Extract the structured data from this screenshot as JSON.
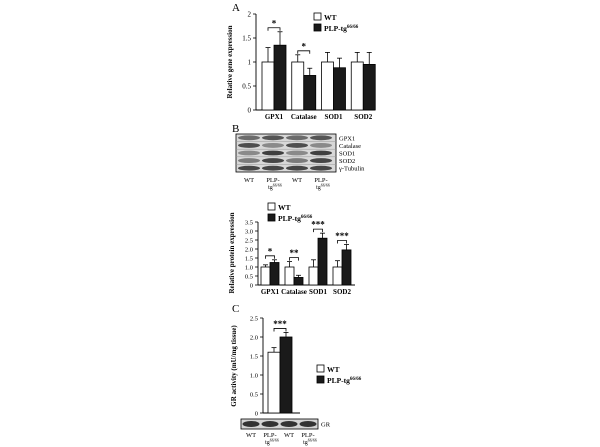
{
  "panels": {
    "a": {
      "letter": "A"
    },
    "b": {
      "letter": "B"
    },
    "c": {
      "letter": "C"
    }
  },
  "legend": {
    "wt": "WT",
    "plp_prefix": "PLP-tg",
    "plp_sup": "66/66"
  },
  "blot_b": {
    "bands": [
      "GPX1",
      "Catalase",
      "SOD1",
      "SOD2",
      "γ-Tubulin"
    ],
    "lanes": [
      {
        "main": "WT",
        "sup": ""
      },
      {
        "main": "PLP-",
        "sub": "tg",
        "sup": "66/66"
      },
      {
        "main": "WT",
        "sup": ""
      },
      {
        "main": "PLP-",
        "sub": "tg",
        "sup": "66/66"
      }
    ]
  },
  "blot_c": {
    "bands": [
      "GR"
    ],
    "lanes": [
      {
        "main": "WT",
        "sup": ""
      },
      {
        "main": "PLP-",
        "sub": "tg",
        "sup": "66/66"
      },
      {
        "main": "WT",
        "sup": ""
      },
      {
        "main": "PLP-",
        "sub": "tg",
        "sup": "66/66"
      }
    ]
  },
  "colors": {
    "wt": "#ffffff",
    "plp": "#1a1a1a",
    "axis": "#000000"
  },
  "chart_data": [
    {
      "type": "bar",
      "ylabel": "Relative gene expression",
      "categories": [
        "GPX1",
        "Catalase",
        "SOD1",
        "SOD2"
      ],
      "yticks": [
        "0",
        "0.5",
        "1",
        "1.5",
        "2"
      ],
      "ylim": [
        0,
        2
      ],
      "series": [
        {
          "name": "WT",
          "values": [
            1.0,
            1.0,
            1.0,
            1.0
          ],
          "errors": [
            0.3,
            0.15,
            0.2,
            0.2
          ]
        },
        {
          "name": "PLP-tg66/66",
          "values": [
            1.35,
            0.72,
            0.88,
            0.95
          ],
          "errors": [
            0.28,
            0.15,
            0.2,
            0.25
          ]
        }
      ],
      "significance": [
        {
          "category": "GPX1",
          "label": "*"
        },
        {
          "category": "Catalase",
          "label": "*"
        }
      ]
    },
    {
      "type": "bar",
      "ylabel": "Relative protein expression",
      "categories": [
        "GPX1",
        "Catalase",
        "SOD1",
        "SOD2"
      ],
      "yticks": [
        "0",
        "0.5",
        "1.0",
        "1.5",
        "2.0",
        "2.5",
        "3.0",
        "3.5"
      ],
      "ylim": [
        0,
        3.5
      ],
      "series": [
        {
          "name": "WT",
          "values": [
            1.0,
            1.0,
            1.0,
            1.0
          ],
          "errors": [
            0.12,
            0.3,
            0.4,
            0.35
          ]
        },
        {
          "name": "PLP-tg66/66",
          "values": [
            1.25,
            0.42,
            2.6,
            1.95
          ],
          "errors": [
            0.15,
            0.12,
            0.28,
            0.3
          ]
        }
      ],
      "significance": [
        {
          "category": "GPX1",
          "label": "*"
        },
        {
          "category": "Catalase",
          "label": "**"
        },
        {
          "category": "SOD1",
          "label": "***"
        },
        {
          "category": "SOD2",
          "label": "***"
        }
      ]
    },
    {
      "type": "bar",
      "ylabel": "GR activity (mU/mg tissue)",
      "categories": [
        ""
      ],
      "yticks": [
        "0",
        "0.5",
        "1.0",
        "1.5",
        "2.0",
        "2.5"
      ],
      "ylim": [
        0,
        2.5
      ],
      "series": [
        {
          "name": "WT",
          "values": [
            1.6
          ],
          "errors": [
            0.12
          ]
        },
        {
          "name": "PLP-tg66/66",
          "values": [
            2.0
          ],
          "errors": [
            0.12
          ]
        }
      ],
      "significance": [
        {
          "category": "",
          "label": "***"
        }
      ]
    }
  ]
}
